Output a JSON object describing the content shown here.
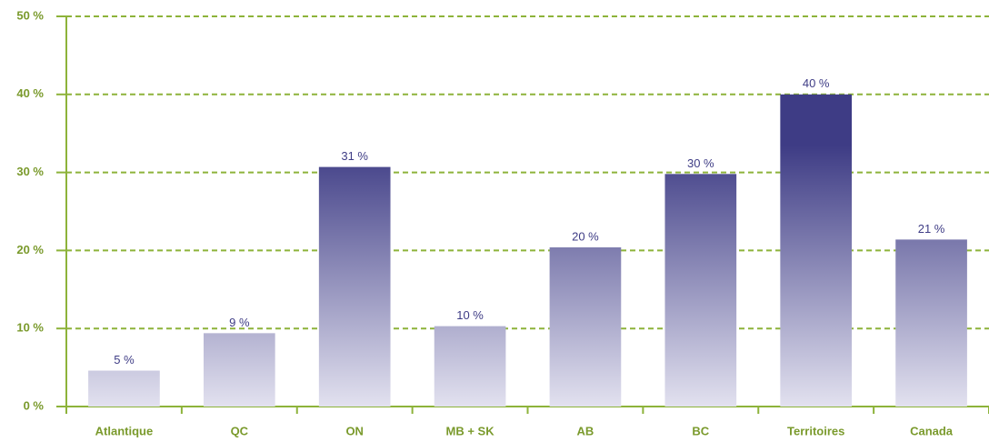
{
  "chart_data": {
    "type": "bar",
    "categories": [
      "Atlantique",
      "QC",
      "ON",
      "MB + SK",
      "AB",
      "BC",
      "Territoires",
      "Canada"
    ],
    "values": [
      4.6,
      9.4,
      30.7,
      10.3,
      20.4,
      29.8,
      40.0,
      21.4
    ],
    "value_labels": [
      "5 %",
      "9 %",
      "31 %",
      "10 %",
      "20 %",
      "30 %",
      "40 %",
      "21 %"
    ],
    "color": "#3e3c85",
    "ylim": [
      0,
      50
    ],
    "yticks": [
      {
        "value": 0,
        "label": "0 %"
      },
      {
        "value": 10,
        "label": "10 %"
      },
      {
        "value": 20,
        "label": "20 %"
      },
      {
        "value": 30,
        "label": "30 %"
      },
      {
        "value": 40,
        "label": "40 %"
      },
      {
        "value": 50,
        "label": "50 %"
      }
    ],
    "grid": true
  }
}
